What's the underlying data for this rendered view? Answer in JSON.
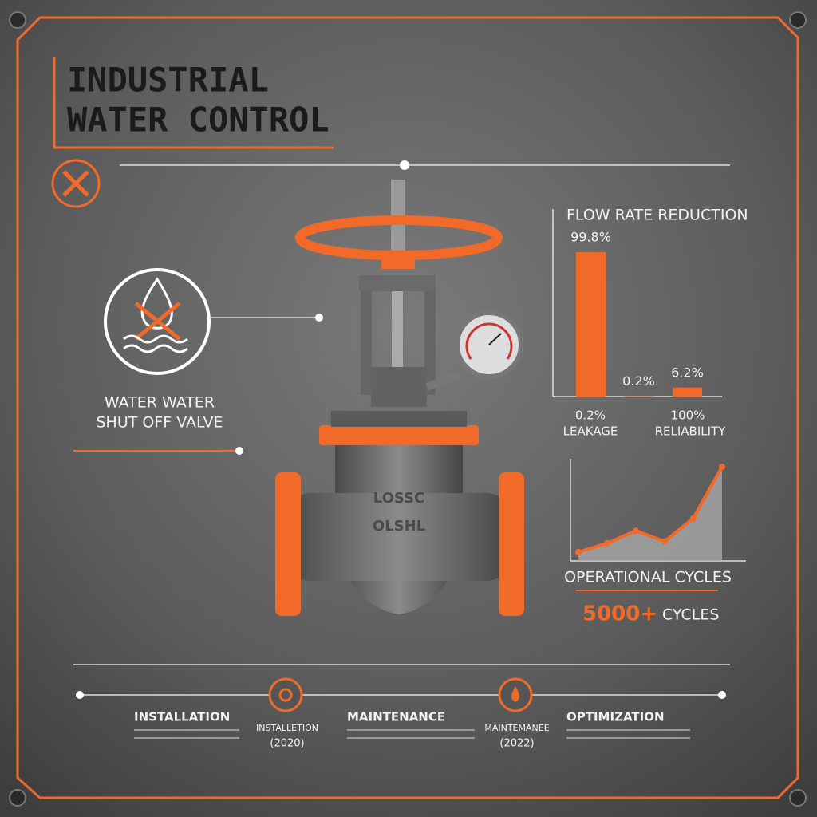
{
  "header": {
    "title_lines": [
      "INDUSTRIAL",
      "WATER CONTROL"
    ]
  },
  "valve_label": {
    "lines": [
      "WATER WATER",
      "SHUT OFF VALVE"
    ]
  },
  "valve_markings": [
    "LOSSC",
    "OLSHL"
  ],
  "chart_data": [
    {
      "type": "bar",
      "title": "FLOW RATE REDUCTION",
      "values": [
        99.8,
        0.2,
        6.2
      ],
      "value_labels": [
        "99.8%",
        "0.2%",
        "6.2%"
      ],
      "color": "#f26a2a"
    },
    {
      "type": "line",
      "title": "OPERATIONAL CYCLES",
      "values": [
        5,
        10,
        17,
        11,
        24,
        53
      ],
      "color": "#f26a2a"
    }
  ],
  "bar_footer": [
    {
      "value": "0.2%",
      "label": "LEAKAGE"
    },
    {
      "value": "100%",
      "label": "RELIABILITY"
    }
  ],
  "cycles": {
    "figure": "5000+",
    "unit": "CYCLES"
  },
  "timeline": {
    "stages": [
      "INSTALLATION",
      "MAINTENANCE",
      "OPTIMIZATION"
    ],
    "milestones": [
      {
        "label": "INSTALLETION",
        "year": "(2020)"
      },
      {
        "label": "MAINTEMANEE",
        "year": "(2022)"
      }
    ]
  }
}
